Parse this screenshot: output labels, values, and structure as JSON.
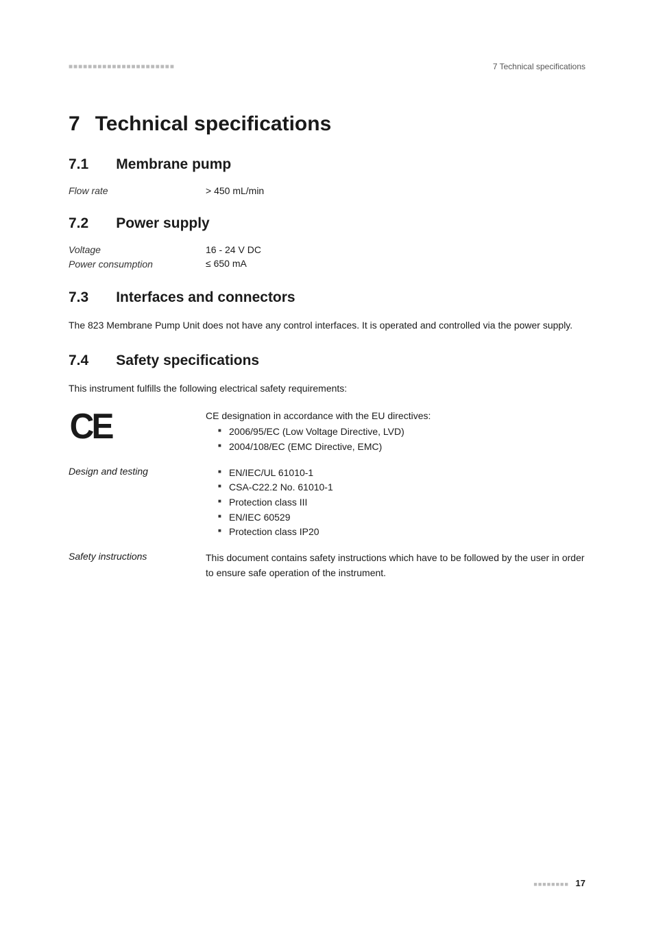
{
  "header": {
    "left_marks": "■■■■■■■■■■■■■■■■■■■■■■",
    "right": "7 Technical specifications"
  },
  "chapter": {
    "num": "7",
    "title": "Technical specifications"
  },
  "sections": {
    "s1": {
      "num": "7.1",
      "title": "Membrane pump",
      "rows": {
        "flow_rate": {
          "label": "Flow rate",
          "value": "> 450 mL/min"
        }
      }
    },
    "s2": {
      "num": "7.2",
      "title": "Power supply",
      "rows": {
        "voltage": {
          "label": "Voltage",
          "value": "16 - 24 V DC"
        },
        "power": {
          "label": "Power consump­tion",
          "value": "≤ 650 mA"
        }
      }
    },
    "s3": {
      "num": "7.3",
      "title": "Interfaces and connectors",
      "body": "The 823 Membrane Pump Unit does not have any control interfaces. It is operated and controlled via the power supply."
    },
    "s4": {
      "num": "7.4",
      "title": "Safety specifications",
      "intro": "This instrument fulfills the following electrical safety requirements:",
      "ce": {
        "mark": "CE",
        "text": "CE designation in accordance with the EU directives:",
        "items": [
          "2006/95/EC (Low Voltage Directive, LVD)",
          "2004/108/EC (EMC Directive, EMC)"
        ]
      },
      "design": {
        "label": "Design and testing",
        "items": [
          "EN/IEC/UL 61010-1",
          "CSA-C22.2 No. 61010-1",
          "Protection class III",
          "EN/IEC 60529",
          "Protection class IP20"
        ]
      },
      "safety_instructions": {
        "label": "Safety instructions",
        "text": "This document contains safety instructions which have to be followed by the user in order to ensure safe operation of the instrument."
      }
    }
  },
  "footer": {
    "dots": "■■■■■■■■",
    "page": "17"
  }
}
